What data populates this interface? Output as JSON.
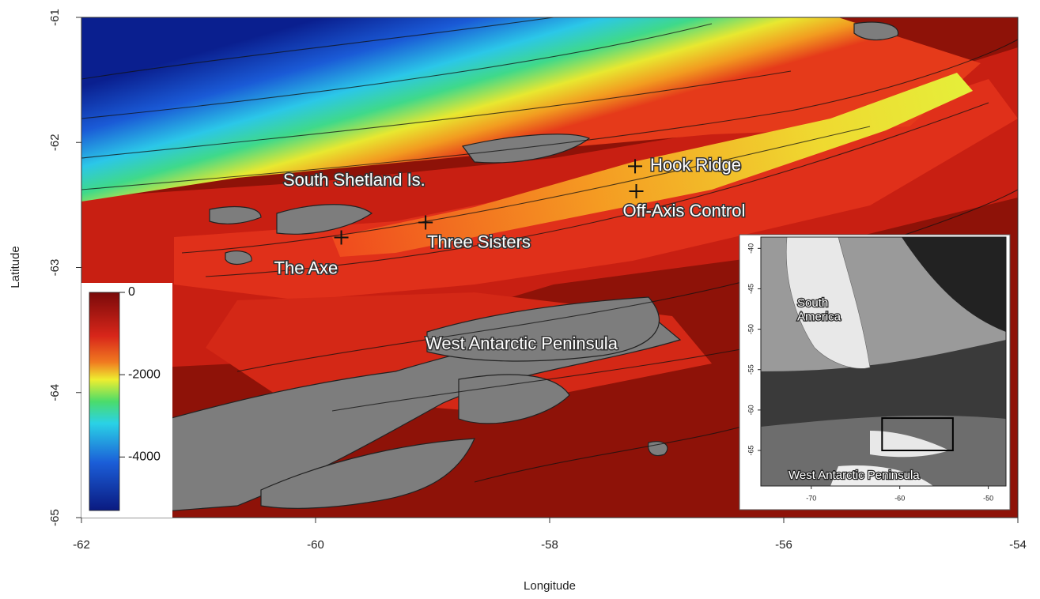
{
  "map": {
    "type": "bathymetry-map",
    "xlabel": "Longitude",
    "ylabel": "Latitude",
    "xlim": [
      -62,
      -54
    ],
    "ylim": [
      -65,
      -61
    ],
    "xticks": [
      -62,
      -60,
      -58,
      -56,
      -54
    ],
    "yticks": [
      -65,
      -64,
      -63,
      -62,
      -61
    ],
    "region_labels": [
      "South Shetland Is.",
      "West Antarctic Peninsula"
    ],
    "sites": [
      {
        "name": "Hook Ridge",
        "lon": -57.27,
        "lat": -62.19
      },
      {
        "name": "Off-Axis Control",
        "lon": -57.26,
        "lat": -62.39
      },
      {
        "name": "Three Sisters",
        "lon": -59.06,
        "lat": -62.64
      },
      {
        "name": "The Axe",
        "lon": -59.78,
        "lat": -62.76
      }
    ],
    "colorbar": {
      "lim": [
        -5300,
        0
      ],
      "ticks": [
        0,
        -2000,
        -4000
      ]
    },
    "inset": {
      "xlim": [
        -75.7,
        -48
      ],
      "ylim": [
        -69.4,
        -38.6
      ],
      "xticks": [
        -70,
        -60,
        -50
      ],
      "yticks": [
        -40,
        -45,
        -50,
        -55,
        -60,
        -65
      ],
      "labels": [
        "South\nAmerica",
        "West Antarctic Peninsula"
      ]
    }
  }
}
